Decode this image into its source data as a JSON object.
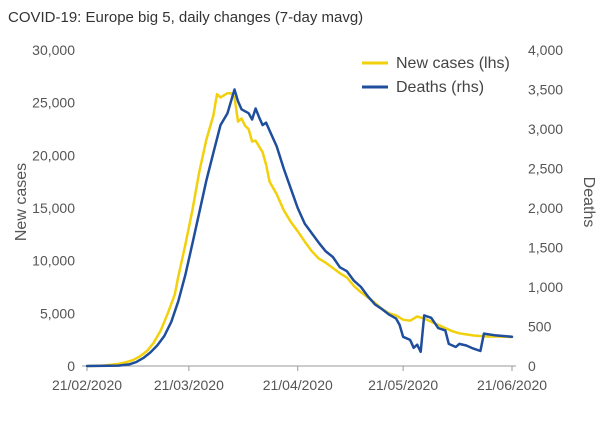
{
  "chart_data": {
    "type": "line",
    "title": "COVID-19: Europe big 5, daily changes (7-day mavg)",
    "ylabel_left": "New cases",
    "ylabel_right": "Deaths",
    "ylim_left": [
      0,
      30000
    ],
    "ylim_right": [
      0,
      4000
    ],
    "yticks_left": [
      0,
      5000,
      10000,
      15000,
      20000,
      25000,
      30000
    ],
    "yticks_left_labels": [
      "0",
      "5,000",
      "10,000",
      "15,000",
      "20,000",
      "25,000",
      "30,000"
    ],
    "yticks_right": [
      0,
      500,
      1000,
      1500,
      2000,
      2500,
      3000,
      3500,
      4000
    ],
    "yticks_right_labels": [
      "0",
      "500",
      "1,000",
      "1,500",
      "2,000",
      "2,500",
      "3,000",
      "3,500",
      "4,000"
    ],
    "x_start": "2020-02-21",
    "x_end": "2020-06-21",
    "xticks": [
      "2020-02-21",
      "2020-03-21",
      "2020-04-21",
      "2020-05-21",
      "2020-06-21"
    ],
    "xtick_labels": [
      "21/02/2020",
      "21/03/2020",
      "21/04/2020",
      "21/05/2020",
      "21/06/2020"
    ],
    "grid": false,
    "legend_position": "top-right",
    "series": [
      {
        "name": "New cases (lhs)",
        "axis": "left",
        "color": "#f2d00b",
        "points": [
          [
            "2020-02-21",
            0
          ],
          [
            "2020-02-25",
            30
          ],
          [
            "2020-02-28",
            120
          ],
          [
            "2020-03-01",
            200
          ],
          [
            "2020-03-03",
            350
          ],
          [
            "2020-03-05",
            550
          ],
          [
            "2020-03-07",
            900
          ],
          [
            "2020-03-09",
            1400
          ],
          [
            "2020-03-11",
            2200
          ],
          [
            "2020-03-13",
            3400
          ],
          [
            "2020-03-15",
            5000
          ],
          [
            "2020-03-17",
            6800
          ],
          [
            "2020-03-18",
            8500
          ],
          [
            "2020-03-20",
            11500
          ],
          [
            "2020-03-22",
            14800
          ],
          [
            "2020-03-24",
            18500
          ],
          [
            "2020-03-26",
            21500
          ],
          [
            "2020-03-28",
            23800
          ],
          [
            "2020-03-29",
            25800
          ],
          [
            "2020-03-30",
            25500
          ],
          [
            "2020-04-01",
            25900
          ],
          [
            "2020-04-02",
            25900
          ],
          [
            "2020-04-03",
            25500
          ],
          [
            "2020-04-04",
            23200
          ],
          [
            "2020-04-05",
            23500
          ],
          [
            "2020-04-06",
            22800
          ],
          [
            "2020-04-07",
            22500
          ],
          [
            "2020-04-08",
            21300
          ],
          [
            "2020-04-09",
            21400
          ],
          [
            "2020-04-11",
            20300
          ],
          [
            "2020-04-12",
            19100
          ],
          [
            "2020-04-13",
            17500
          ],
          [
            "2020-04-15",
            16300
          ],
          [
            "2020-04-17",
            14800
          ],
          [
            "2020-04-19",
            13700
          ],
          [
            "2020-04-21",
            12800
          ],
          [
            "2020-04-23",
            11800
          ],
          [
            "2020-04-25",
            10900
          ],
          [
            "2020-04-27",
            10200
          ],
          [
            "2020-04-29",
            9800
          ],
          [
            "2020-05-01",
            9300
          ],
          [
            "2020-05-03",
            8800
          ],
          [
            "2020-05-05",
            8400
          ],
          [
            "2020-05-07",
            7600
          ],
          [
            "2020-05-09",
            7000
          ],
          [
            "2020-05-11",
            6500
          ],
          [
            "2020-05-13",
            6000
          ],
          [
            "2020-05-15",
            5400
          ],
          [
            "2020-05-17",
            5000
          ],
          [
            "2020-05-19",
            4800
          ],
          [
            "2020-05-21",
            4400
          ],
          [
            "2020-05-23",
            4300
          ],
          [
            "2020-05-25",
            4700
          ],
          [
            "2020-05-27",
            4500
          ],
          [
            "2020-05-29",
            4200
          ],
          [
            "2020-05-31",
            3900
          ],
          [
            "2020-06-02",
            3600
          ],
          [
            "2020-06-04",
            3300
          ],
          [
            "2020-06-06",
            3100
          ],
          [
            "2020-06-08",
            3000
          ],
          [
            "2020-06-10",
            2900
          ],
          [
            "2020-06-12",
            2850
          ],
          [
            "2020-06-14",
            2800
          ],
          [
            "2020-06-17",
            2800
          ],
          [
            "2020-06-21",
            2750
          ]
        ]
      },
      {
        "name": "Deaths (rhs)",
        "axis": "right",
        "color": "#1f4e9c",
        "points": [
          [
            "2020-02-21",
            0
          ],
          [
            "2020-03-01",
            5
          ],
          [
            "2020-03-04",
            20
          ],
          [
            "2020-03-06",
            50
          ],
          [
            "2020-03-08",
            100
          ],
          [
            "2020-03-10",
            170
          ],
          [
            "2020-03-12",
            260
          ],
          [
            "2020-03-14",
            380
          ],
          [
            "2020-03-16",
            560
          ],
          [
            "2020-03-18",
            820
          ],
          [
            "2020-03-20",
            1150
          ],
          [
            "2020-03-22",
            1550
          ],
          [
            "2020-03-24",
            1950
          ],
          [
            "2020-03-26",
            2350
          ],
          [
            "2020-03-28",
            2700
          ],
          [
            "2020-03-30",
            3050
          ],
          [
            "2020-04-01",
            3200
          ],
          [
            "2020-04-02",
            3350
          ],
          [
            "2020-04-03",
            3500
          ],
          [
            "2020-04-04",
            3350
          ],
          [
            "2020-04-05",
            3250
          ],
          [
            "2020-04-07",
            3200
          ],
          [
            "2020-04-08",
            3120
          ],
          [
            "2020-04-09",
            3260
          ],
          [
            "2020-04-10",
            3150
          ],
          [
            "2020-04-11",
            3050
          ],
          [
            "2020-04-12",
            3080
          ],
          [
            "2020-04-13",
            2980
          ],
          [
            "2020-04-15",
            2780
          ],
          [
            "2020-04-17",
            2500
          ],
          [
            "2020-04-19",
            2250
          ],
          [
            "2020-04-21",
            2000
          ],
          [
            "2020-04-23",
            1800
          ],
          [
            "2020-04-25",
            1680
          ],
          [
            "2020-04-27",
            1560
          ],
          [
            "2020-04-29",
            1450
          ],
          [
            "2020-05-01",
            1380
          ],
          [
            "2020-05-03",
            1250
          ],
          [
            "2020-05-05",
            1200
          ],
          [
            "2020-05-07",
            1080
          ],
          [
            "2020-05-09",
            1000
          ],
          [
            "2020-05-11",
            880
          ],
          [
            "2020-05-13",
            780
          ],
          [
            "2020-05-15",
            720
          ],
          [
            "2020-05-17",
            650
          ],
          [
            "2020-05-19",
            600
          ],
          [
            "2020-05-20",
            520
          ],
          [
            "2020-05-21",
            370
          ],
          [
            "2020-05-23",
            330
          ],
          [
            "2020-05-24",
            230
          ],
          [
            "2020-05-25",
            270
          ],
          [
            "2020-05-26",
            180
          ],
          [
            "2020-05-27",
            640
          ],
          [
            "2020-05-29",
            610
          ],
          [
            "2020-05-31",
            480
          ],
          [
            "2020-06-02",
            450
          ],
          [
            "2020-06-03",
            280
          ],
          [
            "2020-06-05",
            240
          ],
          [
            "2020-06-06",
            280
          ],
          [
            "2020-06-08",
            260
          ],
          [
            "2020-06-10",
            220
          ],
          [
            "2020-06-12",
            190
          ],
          [
            "2020-06-13",
            410
          ],
          [
            "2020-06-16",
            390
          ],
          [
            "2020-06-21",
            370
          ]
        ]
      }
    ]
  }
}
